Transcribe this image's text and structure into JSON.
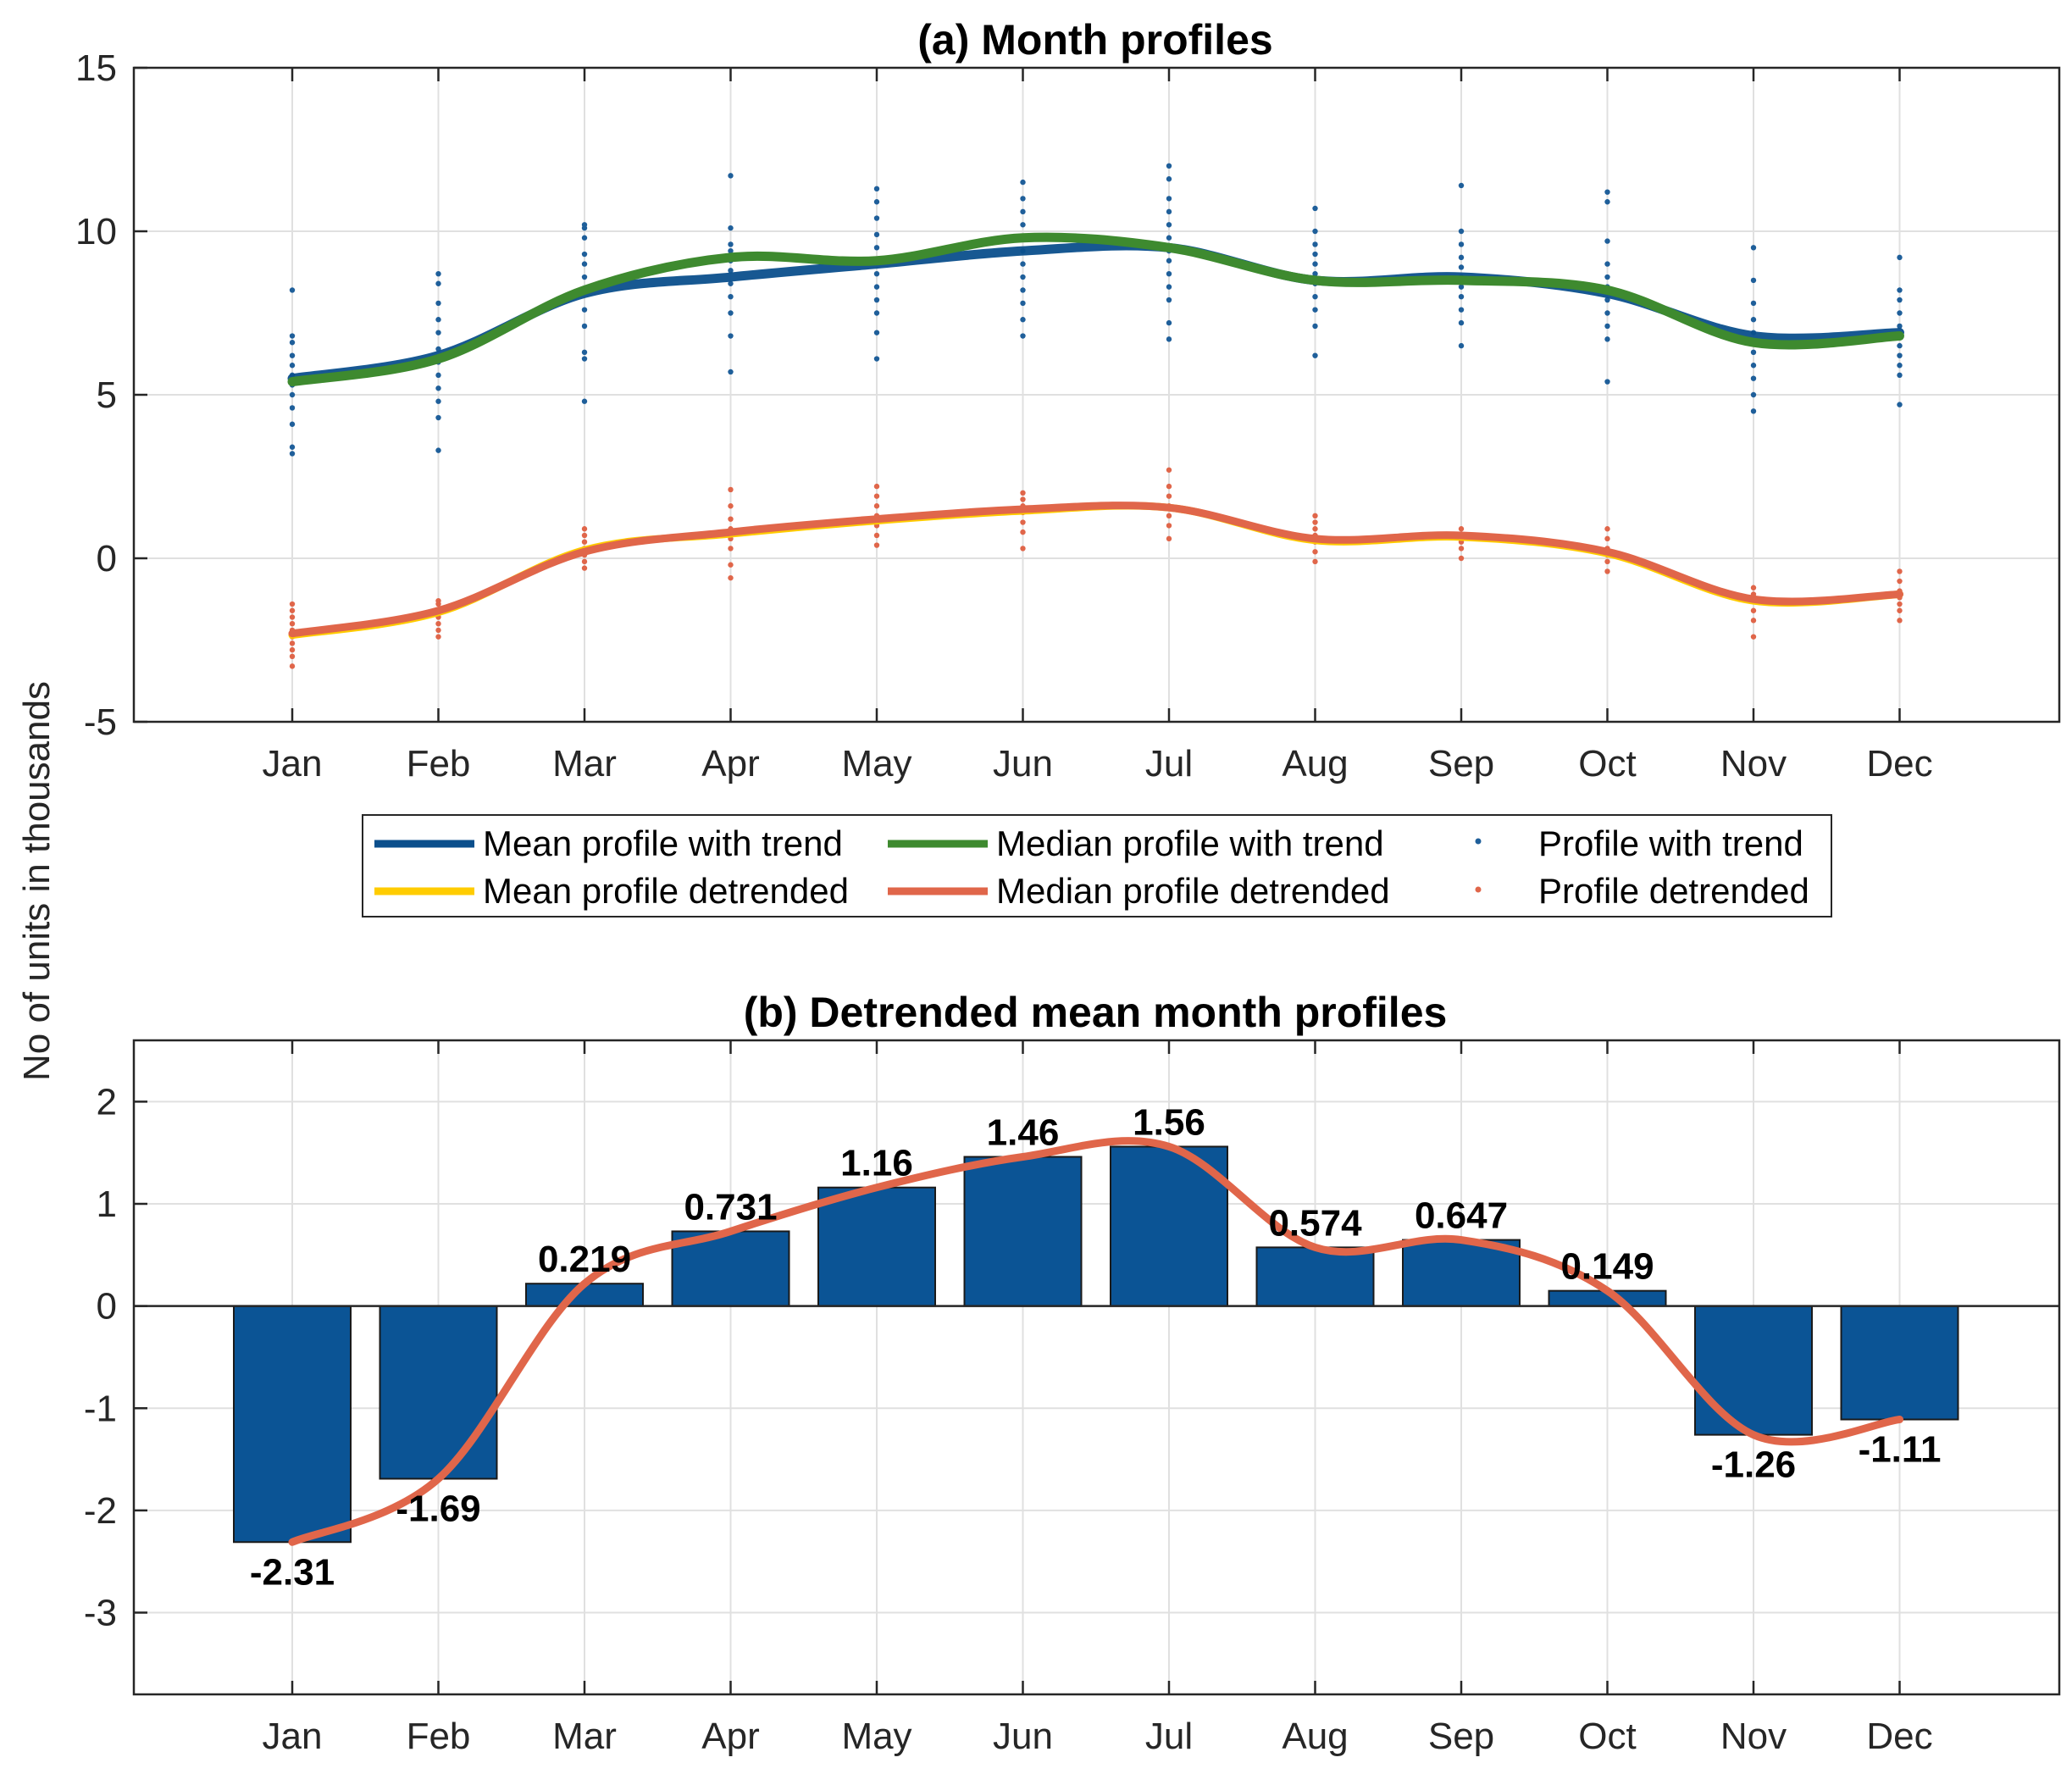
{
  "ylabel": "No of units in thousands",
  "colors": {
    "mean_trend": "#0b4f8c",
    "median_trend": "#3e8a2f",
    "mean_detrended": "#ffcc00",
    "median_detrended": "#e0664a",
    "bars": "#0b5495",
    "dots_trend": "#1f5f9a",
    "dots_detrended": "#e0664a"
  },
  "chart_data": [
    {
      "type": "line",
      "title": "(a) Month profiles",
      "categories": [
        "Jan",
        "Feb",
        "Mar",
        "Apr",
        "May",
        "Jun",
        "Jul",
        "Aug",
        "Sep",
        "Oct",
        "Nov",
        "Dec"
      ],
      "ylim": [
        -5,
        15
      ],
      "yticks": [
        "15",
        "10",
        "5",
        "0",
        "-5"
      ],
      "ytick_values": [
        15,
        10,
        5,
        0,
        -5
      ],
      "grid": true,
      "legend": {
        "placement": "below",
        "entries": [
          "Mean profile with trend",
          "Median profile with trend",
          "Profile with trend",
          "Mean profile detrended",
          "Median profile detrended",
          "Profile detrended"
        ]
      },
      "series": [
        {
          "name": "Mean profile with trend",
          "values": [
            5.5,
            6.2,
            8.1,
            8.6,
            9.0,
            9.4,
            9.5,
            8.5,
            8.6,
            8.1,
            6.8,
            6.9
          ]
        },
        {
          "name": "Median profile with trend",
          "values": [
            5.4,
            6.1,
            8.2,
            9.2,
            9.1,
            9.8,
            9.5,
            8.5,
            8.5,
            8.2,
            6.6,
            6.8
          ]
        },
        {
          "name": "Mean profile detrended",
          "values": [
            -2.35,
            -1.65,
            0.25,
            0.75,
            1.15,
            1.45,
            1.55,
            0.55,
            0.65,
            0.15,
            -1.3,
            -1.1
          ]
        },
        {
          "name": "Median profile detrended",
          "values": [
            -2.3,
            -1.6,
            0.2,
            0.8,
            1.2,
            1.5,
            1.55,
            0.6,
            0.7,
            0.2,
            -1.25,
            -1.1
          ]
        }
      ],
      "scatter": [
        {
          "name": "Profile with trend",
          "points": [
            [
              3.2,
              3.4,
              4.1,
              4.6,
              5.0,
              5.3,
              5.6,
              5.9,
              6.2,
              6.6,
              6.8,
              8.2
            ],
            [
              3.3,
              4.3,
              4.8,
              5.2,
              5.6,
              6.0,
              6.4,
              6.9,
              7.3,
              7.8,
              8.4,
              8.7
            ],
            [
              4.8,
              6.1,
              6.3,
              7.1,
              7.6,
              8.2,
              8.6,
              9.0,
              9.3,
              9.8,
              10.1,
              10.2
            ],
            [
              5.7,
              6.8,
              7.5,
              8.0,
              8.4,
              8.8,
              9.1,
              9.4,
              9.6,
              10.1,
              11.7
            ],
            [
              6.1,
              6.9,
              7.5,
              7.9,
              8.3,
              8.7,
              9.1,
              9.5,
              9.9,
              10.4,
              10.9,
              11.3
            ],
            [
              6.8,
              7.3,
              7.8,
              8.2,
              8.6,
              9.0,
              9.4,
              9.8,
              10.2,
              10.6,
              11.0,
              11.5
            ],
            [
              6.7,
              7.2,
              7.9,
              8.3,
              8.7,
              9.1,
              9.4,
              9.8,
              10.2,
              10.6,
              11.0,
              11.6,
              12.0
            ],
            [
              6.2,
              7.1,
              7.6,
              8.0,
              8.4,
              8.7,
              9.0,
              9.3,
              9.6,
              10.0,
              10.7
            ],
            [
              6.5,
              7.2,
              7.6,
              8.0,
              8.3,
              8.6,
              8.9,
              9.2,
              9.6,
              10.0,
              11.4
            ],
            [
              5.4,
              6.7,
              7.1,
              7.5,
              7.9,
              8.3,
              8.6,
              9.0,
              9.7,
              10.9,
              11.2
            ],
            [
              4.5,
              5.0,
              5.5,
              5.9,
              6.3,
              6.6,
              6.9,
              7.3,
              7.8,
              8.5,
              9.5
            ],
            [
              4.7,
              5.6,
              5.9,
              6.2,
              6.5,
              6.8,
              7.1,
              7.5,
              7.9,
              8.2,
              9.2
            ]
          ]
        },
        {
          "name": "Profile detrended",
          "points": [
            [
              -3.3,
              -3.0,
              -2.8,
              -2.6,
              -2.4,
              -2.2,
              -2.0,
              -1.8,
              -1.6,
              -1.4
            ],
            [
              -2.4,
              -2.2,
              -2.0,
              -1.8,
              -1.6,
              -1.4,
              -1.3
            ],
            [
              -0.3,
              -0.1,
              0.1,
              0.3,
              0.5,
              0.7,
              0.9
            ],
            [
              -0.6,
              -0.2,
              0.3,
              0.6,
              0.9,
              1.2,
              1.6,
              2.1
            ],
            [
              0.4,
              0.7,
              1.0,
              1.3,
              1.6,
              1.9,
              2.2
            ],
            [
              0.3,
              0.8,
              1.1,
              1.4,
              1.6,
              1.8,
              2.0
            ],
            [
              0.6,
              1.0,
              1.3,
              1.6,
              1.9,
              2.2,
              2.7
            ],
            [
              -0.1,
              0.2,
              0.5,
              0.7,
              0.9,
              1.1,
              1.3
            ],
            [
              0.0,
              0.3,
              0.5,
              0.7,
              0.9
            ],
            [
              -0.4,
              -0.1,
              0.1,
              0.3,
              0.6,
              0.9
            ],
            [
              -2.4,
              -1.9,
              -1.6,
              -1.3,
              -1.1,
              -0.9
            ],
            [
              -1.9,
              -1.6,
              -1.4,
              -1.2,
              -1.0,
              -0.7,
              -0.4
            ]
          ]
        }
      ]
    },
    {
      "type": "bar",
      "title": "(b) Detrended mean month profiles",
      "categories": [
        "Jan",
        "Feb",
        "Mar",
        "Apr",
        "May",
        "Jun",
        "Jul",
        "Aug",
        "Sep",
        "Oct",
        "Nov",
        "Dec"
      ],
      "values": [
        -2.31,
        -1.69,
        0.219,
        0.731,
        1.16,
        1.46,
        1.56,
        0.574,
        0.647,
        0.149,
        -1.26,
        -1.11
      ],
      "labels": [
        "-2.31",
        "-1.69",
        "0.219",
        "0.731",
        "1.16",
        "1.46",
        "1.56",
        "0.574",
        "0.647",
        "0.149",
        "-1.26",
        "-1.11"
      ],
      "ylim": [
        -3.8,
        2.6
      ],
      "yticks": [
        "2",
        "1",
        "0",
        "-1",
        "-2",
        "-3"
      ],
      "ytick_values": [
        2,
        1,
        0,
        -1,
        -2,
        -3
      ],
      "grid": true,
      "overlay_line": [
        -2.31,
        -1.69,
        0.219,
        0.731,
        1.16,
        1.46,
        1.56,
        0.574,
        0.647,
        0.149,
        -1.26,
        -1.11
      ]
    }
  ]
}
